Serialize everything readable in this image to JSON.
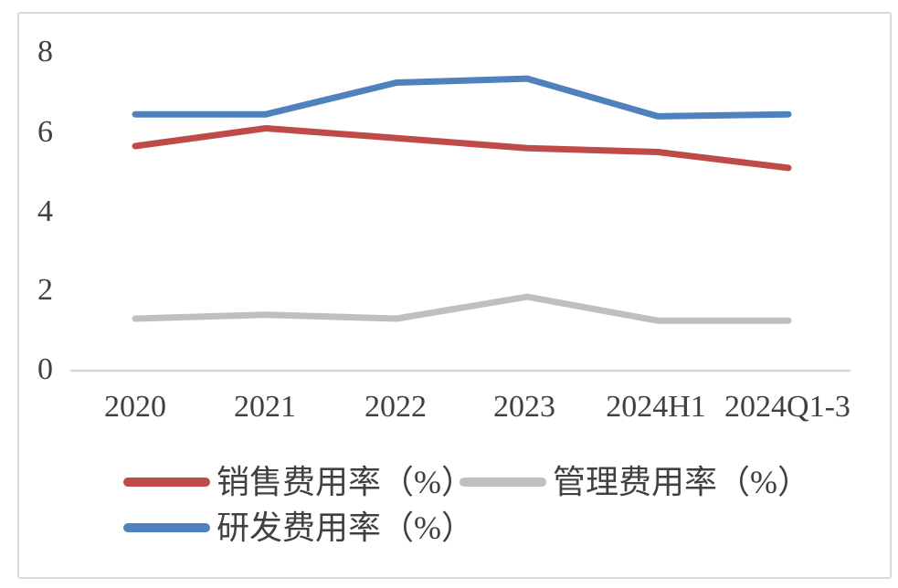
{
  "chart_data": {
    "type": "line",
    "title": "",
    "categories": [
      "2020",
      "2021",
      "2022",
      "2023",
      "2024H1",
      "2024Q1-3"
    ],
    "series": [
      {
        "name": "销售费用率（%）",
        "color": "#bf4b48",
        "values": [
          5.65,
          6.1,
          5.85,
          5.6,
          5.5,
          5.1
        ]
      },
      {
        "name": "管理费用率（%）",
        "color": "#bfbfbf",
        "values": [
          1.3,
          1.4,
          1.3,
          1.85,
          1.25,
          1.25
        ]
      },
      {
        "name": "研发费用率（%）",
        "color": "#4f81bd",
        "values": [
          6.45,
          6.45,
          7.25,
          7.35,
          6.4,
          6.45
        ]
      }
    ],
    "yticks": [
      "8",
      "6",
      "4",
      "2",
      "0"
    ],
    "ylim": [
      0,
      8
    ],
    "xlabel": "",
    "ylabel": "",
    "grid": false,
    "legend_position": "bottom",
    "axis_color": "#d6d6d6"
  }
}
